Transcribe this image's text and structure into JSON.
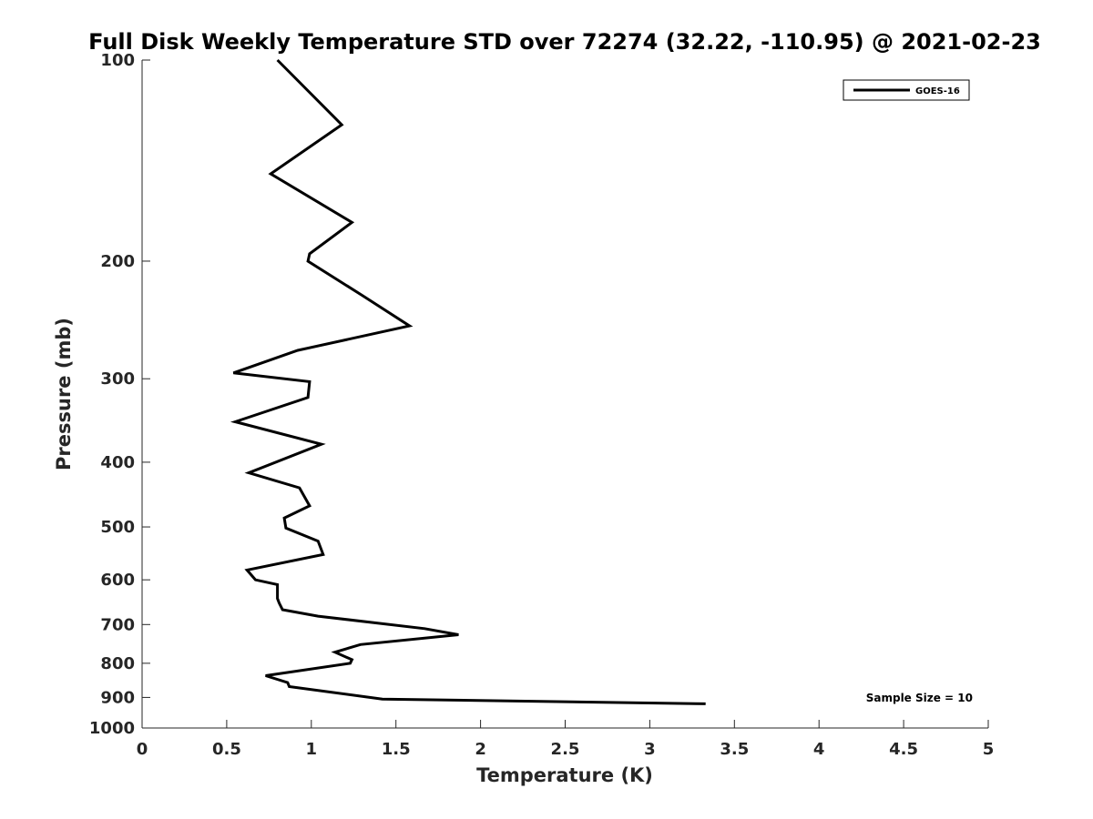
{
  "chart_data": {
    "type": "line",
    "title": "Full Disk Weekly Temperature STD over 72274 (32.22, -110.95) @ 2021-02-23",
    "xlabel": "Temperature (K)",
    "ylabel": "Pressure (mb)",
    "xlim": [
      0,
      5
    ],
    "ylim": [
      100,
      1000
    ],
    "y_scale": "log",
    "y_reversed": true,
    "grid": false,
    "legend_position": "top-right",
    "x_ticks": [
      "0",
      "0.5",
      "1",
      "1.5",
      "2",
      "2.5",
      "3",
      "3.5",
      "4",
      "4.5",
      "5"
    ],
    "x_tick_values": [
      0,
      0.5,
      1,
      1.5,
      2,
      2.5,
      3,
      3.5,
      4,
      4.5,
      5
    ],
    "y_ticks": [
      "100",
      "200",
      "300",
      "400",
      "500",
      "600",
      "700",
      "800",
      "900",
      "1000"
    ],
    "y_tick_values": [
      100,
      200,
      300,
      400,
      500,
      600,
      700,
      800,
      900,
      1000
    ],
    "series": [
      {
        "name": "GOES-16",
        "color": "#000000",
        "x": [
          0.8,
          1.18,
          0.76,
          1.24,
          0.99,
          0.98,
          1.3,
          1.58,
          0.92,
          0.54,
          0.99,
          0.98,
          0.55,
          1.06,
          0.63,
          0.93,
          0.99,
          0.84,
          0.85,
          1.04,
          1.07,
          0.62,
          0.67,
          0.8,
          0.8,
          0.81,
          0.83,
          1.04,
          1.67,
          1.87,
          1.29,
          1.14,
          1.24,
          1.23,
          0.73,
          0.86,
          0.87,
          1.42,
          3.33
        ],
        "y": [
          100,
          125,
          148,
          175,
          195,
          200,
          225,
          250,
          272,
          294,
          303,
          320,
          348,
          376,
          415,
          437,
          465,
          485,
          502,
          525,
          550,
          580,
          600,
          610,
          640,
          650,
          665,
          680,
          710,
          725,
          750,
          770,
          790,
          800,
          835,
          855,
          867,
          905,
          920
        ]
      }
    ],
    "annotation": "Sample Size = 10"
  }
}
